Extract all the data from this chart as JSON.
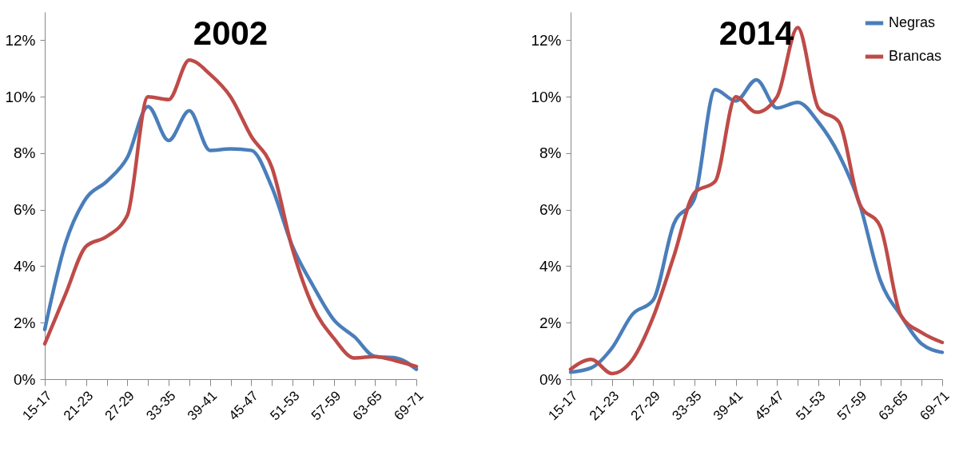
{
  "chart_data": [
    {
      "type": "line",
      "title": "2002",
      "categories": [
        "15-17",
        null,
        "21-23",
        null,
        "27-29",
        null,
        "33-35",
        null,
        "39-41",
        null,
        "45-47",
        null,
        "51-53",
        null,
        "57-59",
        null,
        "63-65",
        null,
        "69-71"
      ],
      "series": [
        {
          "color": "#4a7ebb",
          "values": [
            1.76,
            4.8,
            6.4,
            7.0,
            7.85,
            9.65,
            8.45,
            9.5,
            8.1,
            8.15,
            8.1,
            6.8,
            4.7,
            3.3,
            2.1,
            1.5,
            0.8,
            0.75,
            0.35
          ]
        },
        {
          "color": "#be4b48",
          "values": [
            1.25,
            3.0,
            4.7,
            5.05,
            5.8,
            10.0,
            9.9,
            11.3,
            10.8,
            10.0,
            8.6,
            7.5,
            4.6,
            2.55,
            1.45,
            0.75,
            0.8,
            0.65,
            0.45
          ]
        }
      ],
      "ylim": [
        0,
        13
      ],
      "yticks": [
        {
          "value": 0,
          "label": "0%"
        },
        {
          "value": 2,
          "label": "2%"
        },
        {
          "value": 4,
          "label": "4%"
        },
        {
          "value": 6,
          "label": "6%"
        },
        {
          "value": 8,
          "label": "8%"
        },
        {
          "value": 10,
          "label": "10%"
        },
        {
          "value": 12,
          "label": "12%"
        }
      ],
      "grid": false,
      "marker": "none",
      "line_style": "solid"
    },
    {
      "type": "line",
      "title": "2014",
      "categories": [
        "15-17",
        null,
        "21-23",
        null,
        "27-29",
        null,
        "33-35",
        null,
        "39-41",
        null,
        "45-47",
        null,
        "51-53",
        null,
        "57-59",
        null,
        "63-65",
        null,
        "69-71"
      ],
      "series": [
        {
          "name": "Negras",
          "color": "#4a7ebb",
          "values": [
            0.25,
            0.4,
            1.1,
            2.3,
            2.8,
            5.5,
            6.4,
            10.25,
            9.85,
            10.6,
            9.6,
            9.8,
            9.1,
            7.95,
            6.2,
            3.5,
            2.25,
            1.25,
            0.95
          ]
        },
        {
          "name": "Brancas",
          "color": "#be4b48",
          "values": [
            0.35,
            0.7,
            0.2,
            0.7,
            2.2,
            4.35,
            6.6,
            7.0,
            10.0,
            9.45,
            10.0,
            12.45,
            9.6,
            9.1,
            6.2,
            5.4,
            2.25,
            1.65,
            1.3
          ]
        }
      ],
      "ylim": [
        0,
        13
      ],
      "yticks": [
        {
          "value": 0,
          "label": "0%"
        },
        {
          "value": 2,
          "label": "2%"
        },
        {
          "value": 4,
          "label": "4%"
        },
        {
          "value": 6,
          "label": "6%"
        },
        {
          "value": 8,
          "label": "8%"
        },
        {
          "value": 10,
          "label": "10%"
        },
        {
          "value": 12,
          "label": "12%"
        }
      ],
      "grid": false,
      "legend": "top right",
      "marker": "none",
      "line_style": "solid"
    }
  ]
}
